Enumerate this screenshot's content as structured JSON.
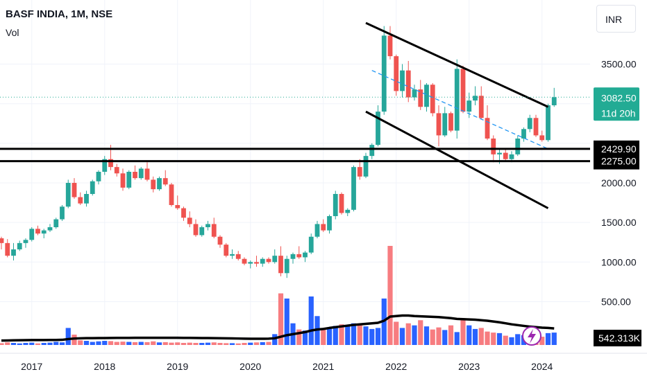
{
  "header": {
    "title": "BASF INDIA, 1M, NSE",
    "volume_label": "Vol",
    "currency": "INR"
  },
  "price_badge": {
    "price": "3082.50",
    "countdown": "11d 20h",
    "color": "#22ab94"
  },
  "level_tags": [
    "2429.90",
    "2275.00"
  ],
  "volume_badge": "542.313K",
  "colors": {
    "up": "#26a69a",
    "down": "#ef5350",
    "vol_up": "#2962ff",
    "vol_down": "#f77c80",
    "accent": "#9c27b0"
  },
  "chart_data": {
    "type": "candlestick",
    "title": "BASF INDIA, 1M, NSE",
    "interval": "1M",
    "price_axis": {
      "ticks": [
        3500,
        3000,
        2500,
        2000,
        1500,
        1000,
        500
      ],
      "tick_labels": [
        "3500.00",
        "",
        "",
        "2000.00",
        "1500.00",
        "1000.00",
        "500.00"
      ],
      "range": [
        -350,
        4450
      ]
    },
    "time_axis": {
      "labels": [
        "2017",
        "2018",
        "2019",
        "2020",
        "2021",
        "2022",
        "2023",
        "2024"
      ]
    },
    "grid": true,
    "start": "2016-08",
    "candles": [
      [
        1300,
        1320,
        1160,
        1240
      ],
      [
        1240,
        1290,
        1060,
        1080
      ],
      [
        1080,
        1240,
        1020,
        1160
      ],
      [
        1160,
        1270,
        1140,
        1240
      ],
      [
        1240,
        1300,
        1180,
        1280
      ],
      [
        1280,
        1440,
        1260,
        1420
      ],
      [
        1420,
        1460,
        1340,
        1360
      ],
      [
        1360,
        1420,
        1300,
        1400
      ],
      [
        1400,
        1480,
        1380,
        1440
      ],
      [
        1440,
        1560,
        1420,
        1540
      ],
      [
        1540,
        1720,
        1520,
        1700
      ],
      [
        1700,
        2040,
        1680,
        2000
      ],
      [
        2000,
        2060,
        1800,
        1820
      ],
      [
        1820,
        1880,
        1720,
        1740
      ],
      [
        1740,
        1900,
        1700,
        1860
      ],
      [
        1860,
        2040,
        1840,
        2020
      ],
      [
        2020,
        2160,
        1980,
        2140
      ],
      [
        2140,
        2340,
        2100,
        2300
      ],
      [
        2300,
        2480,
        2160,
        2200
      ],
      [
        2200,
        2240,
        2080,
        2120
      ],
      [
        2120,
        2180,
        1900,
        1940
      ],
      [
        1940,
        2160,
        1920,
        2140
      ],
      [
        2140,
        2220,
        2040,
        2060
      ],
      [
        2060,
        2200,
        2040,
        2180
      ],
      [
        2180,
        2260,
        2020,
        2040
      ],
      [
        2040,
        2080,
        1880,
        1920
      ],
      [
        1920,
        2080,
        1900,
        2060
      ],
      [
        2060,
        2160,
        1960,
        1980
      ],
      [
        1980,
        2000,
        1700,
        1720
      ],
      [
        1720,
        1840,
        1660,
        1680
      ],
      [
        1680,
        1700,
        1520,
        1560
      ],
      [
        1560,
        1640,
        1440,
        1480
      ],
      [
        1480,
        1540,
        1320,
        1340
      ],
      [
        1340,
        1460,
        1320,
        1440
      ],
      [
        1440,
        1520,
        1400,
        1480
      ],
      [
        1480,
        1560,
        1300,
        1320
      ],
      [
        1320,
        1340,
        1180,
        1220
      ],
      [
        1220,
        1240,
        1060,
        1080
      ],
      [
        1080,
        1160,
        1040,
        1100
      ],
      [
        1100,
        1140,
        1020,
        1040
      ],
      [
        1040,
        1060,
        960,
        980
      ],
      [
        980,
        1020,
        920,
        1000
      ],
      [
        1000,
        1080,
        940,
        980
      ],
      [
        980,
        1060,
        940,
        1040
      ],
      [
        1040,
        1060,
        980,
        1000
      ],
      [
        1000,
        1160,
        980,
        1080
      ],
      [
        1080,
        1200,
        820,
        860
      ],
      [
        860,
        1080,
        800,
        1040
      ],
      [
        1040,
        1120,
        980,
        1100
      ],
      [
        1100,
        1200,
        1040,
        1060
      ],
      [
        1060,
        1140,
        1000,
        1120
      ],
      [
        1120,
        1360,
        1100,
        1320
      ],
      [
        1320,
        1520,
        1300,
        1480
      ],
      [
        1480,
        1540,
        1380,
        1400
      ],
      [
        1400,
        1600,
        1360,
        1580
      ],
      [
        1580,
        1900,
        1540,
        1860
      ],
      [
        1860,
        1880,
        1600,
        1620
      ],
      [
        1620,
        1680,
        1580,
        1660
      ],
      [
        1660,
        2220,
        1640,
        2200
      ],
      [
        2200,
        2300,
        2040,
        2080
      ],
      [
        2080,
        2380,
        2060,
        2340
      ],
      [
        2340,
        2500,
        2300,
        2480
      ],
      [
        2480,
        2980,
        2460,
        2900
      ],
      [
        2900,
        3980,
        2860,
        3860
      ],
      [
        3860,
        3980,
        3560,
        3600
      ],
      [
        3600,
        3620,
        3100,
        3160
      ],
      [
        3160,
        3500,
        3080,
        3420
      ],
      [
        3420,
        3540,
        3020,
        3080
      ],
      [
        3080,
        3240,
        3040,
        3180
      ],
      [
        3180,
        3300,
        2920,
        2960
      ],
      [
        2960,
        3260,
        2900,
        3240
      ],
      [
        3240,
        3260,
        2840,
        2880
      ],
      [
        2880,
        2980,
        2460,
        2600
      ],
      [
        2600,
        2960,
        2580,
        2880
      ],
      [
        2880,
        2900,
        2640,
        2660
      ],
      [
        2660,
        3560,
        2560,
        3440
      ],
      [
        3440,
        3480,
        2880,
        2900
      ],
      [
        2900,
        3140,
        2820,
        3040
      ],
      [
        3040,
        3220,
        2980,
        3100
      ],
      [
        3100,
        3220,
        2800,
        2820
      ],
      [
        2820,
        2980,
        2540,
        2560
      ],
      [
        2560,
        2600,
        2260,
        2360
      ],
      [
        2360,
        2440,
        2240,
        2380
      ],
      [
        2380,
        2420,
        2280,
        2300
      ],
      [
        2300,
        2400,
        2260,
        2360
      ],
      [
        2360,
        2600,
        2340,
        2560
      ],
      [
        2560,
        2700,
        2520,
        2680
      ],
      [
        2680,
        2860,
        2640,
        2820
      ],
      [
        2820,
        2860,
        2580,
        2600
      ],
      [
        2600,
        2660,
        2520,
        2540
      ],
      [
        2540,
        3000,
        2520,
        2980
      ],
      [
        2980,
        3200,
        2960,
        3082
      ]
    ],
    "volume": [
      {
        "values": [
          35,
          50,
          40,
          30,
          40,
          45,
          30,
          40,
          45,
          60,
          50,
          330,
          200,
          90,
          80,
          60,
          70,
          80,
          75,
          60,
          65,
          60,
          55,
          60,
          55,
          70,
          50,
          55,
          45,
          50,
          40,
          45,
          40,
          40,
          45,
          50,
          40,
          35,
          35,
          30,
          40,
          45,
          50,
          55,
          60,
          210,
          1000,
          900,
          420,
          300,
          280,
          940,
          560,
          300,
          340,
          370,
          400,
          390,
          420,
          380,
          360,
          310,
          330,
          900,
          1920,
          450,
          330,
          420,
          380,
          480,
          360,
          300,
          340,
          290,
          380,
          250,
          520,
          380,
          310,
          330,
          260,
          240,
          230,
          180,
          150,
          210,
          190,
          170,
          180,
          160,
          230,
          240
        ]
      },
      {
        "name": "Volume MA",
        "values": [
          85,
          88,
          90,
          92,
          94,
          95,
          95,
          96,
          97,
          98,
          100,
          115,
          125,
          130,
          132,
          133,
          134,
          135,
          136,
          137,
          138,
          138,
          139,
          139,
          139,
          140,
          140,
          140,
          139,
          139,
          138,
          137,
          136,
          135,
          134,
          133,
          131,
          129,
          127,
          125,
          123,
          121,
          120,
          121,
          122,
          130,
          160,
          190,
          210,
          230,
          250,
          280,
          300,
          310,
          330,
          345,
          360,
          375,
          390,
          400,
          410,
          420,
          430,
          470,
          550,
          560,
          570,
          570,
          560,
          555,
          550,
          545,
          540,
          530,
          520,
          505,
          500,
          495,
          490,
          480,
          470,
          455,
          440,
          420,
          400,
          385,
          370,
          355,
          345,
          335,
          330,
          320
        ]
      }
    ],
    "annotations": [
      {
        "type": "channel-upper",
        "from": [
          "2021-08",
          4020
        ],
        "to": [
          "2024-02",
          2960
        ]
      },
      {
        "type": "channel-lower",
        "from": [
          "2021-08",
          2900
        ],
        "to": [
          "2024-02",
          1680
        ]
      },
      {
        "type": "channel-mid-dashed",
        "from": [
          "2021-09",
          3420
        ],
        "to": [
          "2024-02",
          2430
        ]
      },
      {
        "type": "horizontal-level",
        "value": 2429.9
      },
      {
        "type": "horizontal-level",
        "value": 2275.0
      },
      {
        "type": "last-price-line",
        "value": 3082.5
      }
    ]
  }
}
